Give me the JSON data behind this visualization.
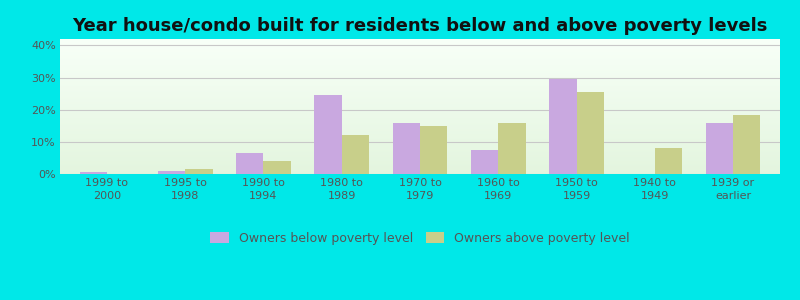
{
  "title": "Year house/condo built for residents below and above poverty levels",
  "categories": [
    "1999 to\n2000",
    "1995 to\n1998",
    "1990 to\n1994",
    "1980 to\n1989",
    "1970 to\n1979",
    "1960 to\n1969",
    "1950 to\n1959",
    "1940 to\n1949",
    "1939 or\nearlier"
  ],
  "below_poverty": [
    0.5,
    1.0,
    6.5,
    24.5,
    16.0,
    7.5,
    29.5,
    0.0,
    16.0
  ],
  "above_poverty": [
    0.0,
    1.5,
    4.0,
    12.0,
    15.0,
    16.0,
    25.5,
    8.0,
    18.5
  ],
  "below_color": "#c9a8e0",
  "above_color": "#c8cf8a",
  "fig_bg_color": "#00e8e8",
  "ylim": [
    0,
    42
  ],
  "yticks": [
    0,
    10,
    20,
    30,
    40
  ],
  "ytick_labels": [
    "0%",
    "10%",
    "20%",
    "30%",
    "40%"
  ],
  "legend_below": "Owners below poverty level",
  "legend_above": "Owners above poverty level",
  "title_fontsize": 13,
  "tick_fontsize": 8,
  "legend_fontsize": 9,
  "bar_width": 0.35
}
